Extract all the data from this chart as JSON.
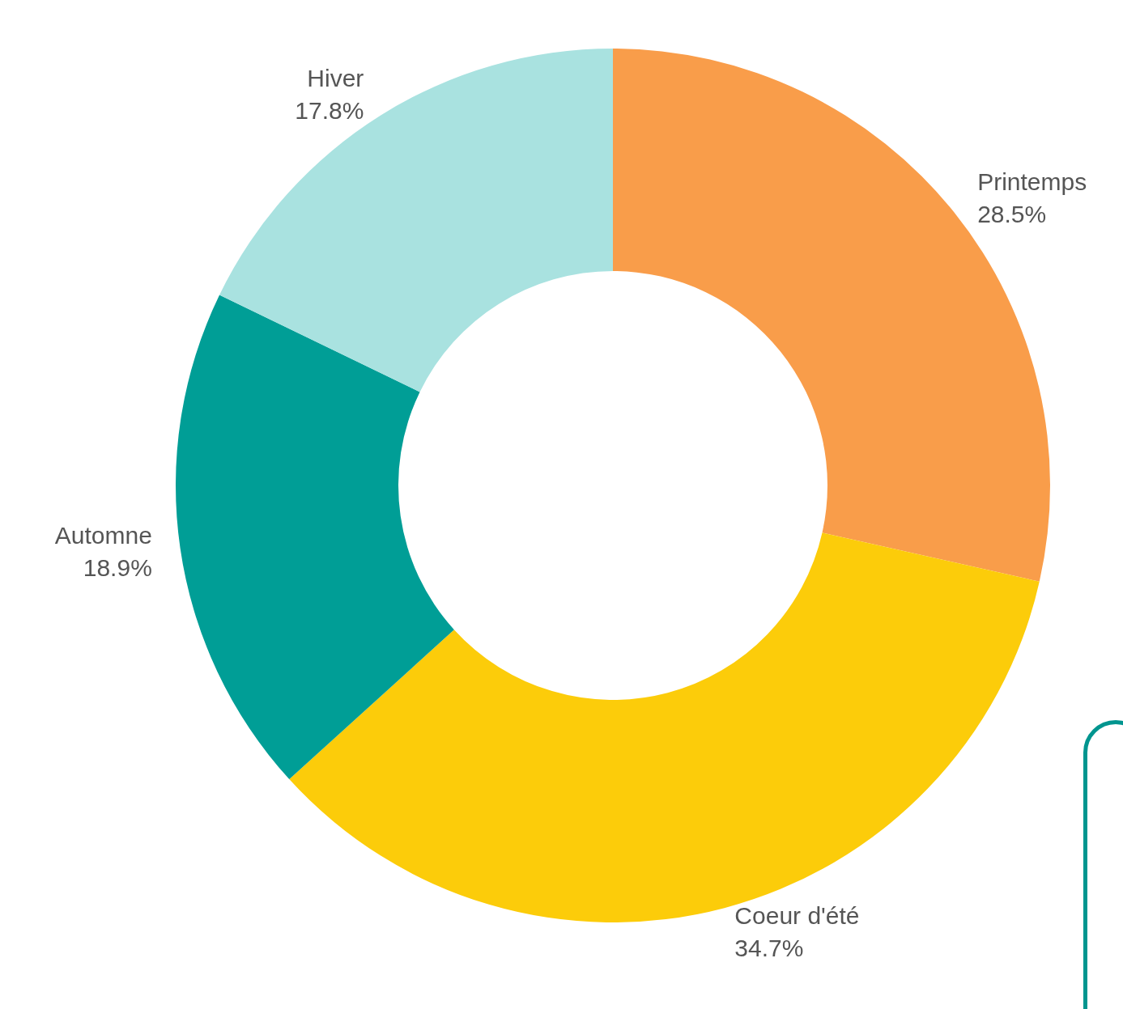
{
  "chart_data": {
    "type": "donut",
    "categories": [
      "Printemps",
      "Coeur d'été",
      "Automne",
      "Hiver"
    ],
    "values": [
      28.5,
      34.7,
      18.9,
      17.8
    ],
    "colors": [
      "#f99d4a",
      "#fccc0a",
      "#009e96",
      "#a9e2e0"
    ],
    "value_labels": [
      "28.5%",
      "34.7%",
      "18.9%",
      "17.8%"
    ]
  }
}
